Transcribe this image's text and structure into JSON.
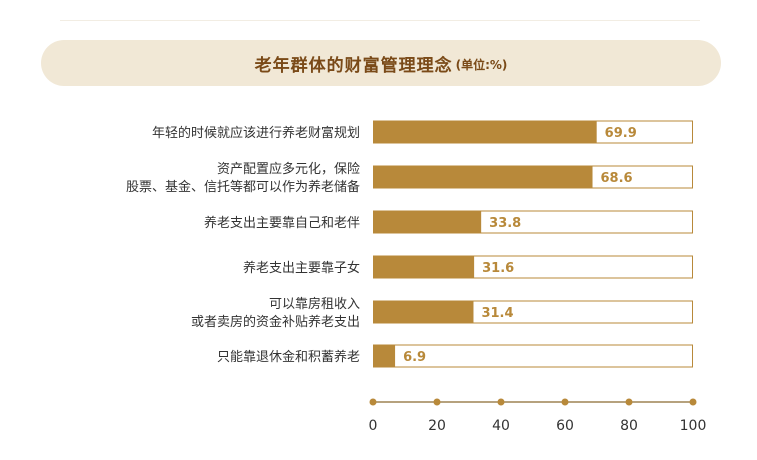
{
  "title": "老年群体的财富管理理念",
  "unit": "(单位:%)",
  "colors": {
    "bar_fill": "#b8893a",
    "bar_border": "#b8893a",
    "bar_background": "#ffffff",
    "value_text": "#b8893a",
    "category_text": "#333333",
    "axis_line": "#8a6a30",
    "axis_dot": "#b8893a",
    "tick_text": "#333333",
    "banner_background": "#f1e8d6",
    "title_text": "#7a4a18"
  },
  "chart_data": {
    "type": "bar",
    "orientation": "horizontal",
    "categories": [
      [
        "年轻的时候就应该进行养老财富规划"
      ],
      [
        "资产配置应多元化，保险",
        "股票、基金、信托等都可以作为养老储备"
      ],
      [
        "养老支出主要靠自己和老伴"
      ],
      [
        "养老支出主要靠子女"
      ],
      [
        "可以靠房租收入",
        "或者卖房的资金补贴养老支出"
      ],
      [
        "只能靠退休金和积蓄养老"
      ]
    ],
    "values": [
      69.9,
      68.6,
      33.8,
      31.6,
      31.4,
      6.9
    ],
    "value_labels": [
      "69.9",
      "68.6",
      "33.8",
      "31.6",
      "31.4",
      "6.9"
    ],
    "xlim": [
      0,
      100
    ],
    "xticks": [
      0,
      20,
      40,
      60,
      80,
      100
    ],
    "grid": false,
    "legend": "none"
  }
}
